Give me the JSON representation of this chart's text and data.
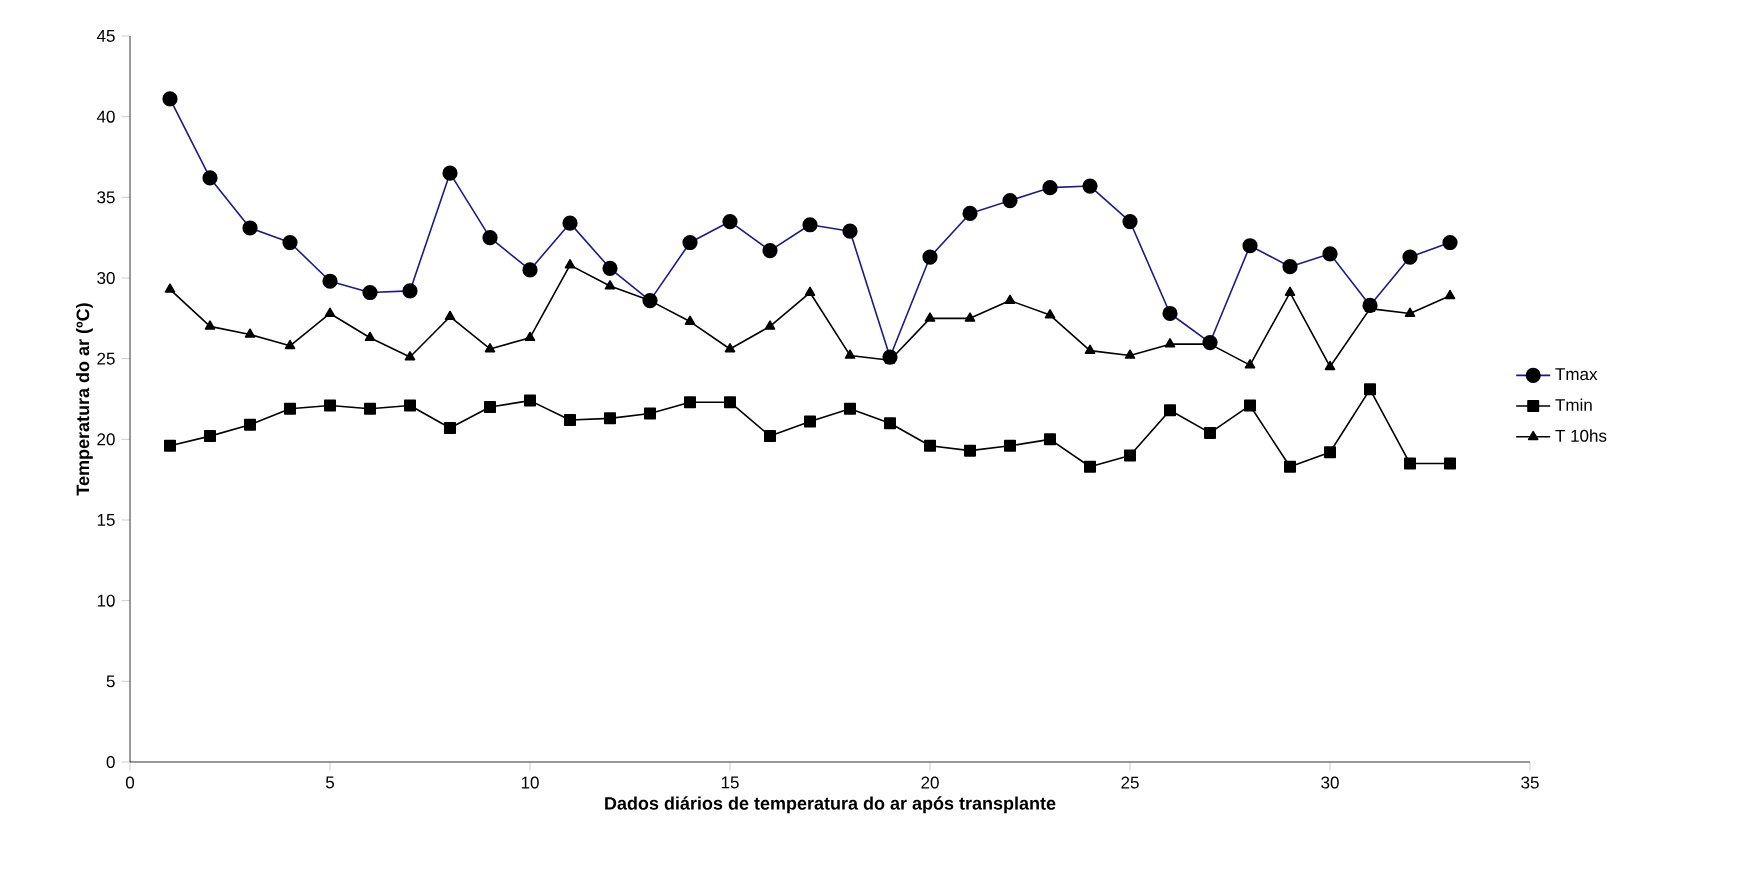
{
  "chart_data": {
    "type": "line",
    "xlabel": "Dados diários de temperatura do ar após transplante",
    "ylabel": "Temperatura do ar (ºC)",
    "x": [
      1,
      2,
      3,
      4,
      5,
      6,
      7,
      8,
      9,
      10,
      11,
      12,
      13,
      14,
      15,
      16,
      17,
      18,
      19,
      20,
      21,
      22,
      23,
      24,
      25,
      26,
      27,
      28,
      29,
      30,
      31,
      32,
      33
    ],
    "series": [
      {
        "name": "Tmax",
        "color": "#1a1a8c",
        "marker": "circle",
        "values": [
          41.1,
          36.2,
          33.1,
          32.2,
          29.8,
          29.1,
          29.2,
          36.5,
          32.5,
          30.5,
          33.4,
          30.6,
          28.6,
          32.2,
          33.5,
          31.7,
          33.3,
          32.9,
          25.1,
          31.3,
          34.0,
          34.8,
          35.6,
          35.7,
          33.5,
          27.8,
          26.0,
          32.0,
          30.7,
          31.5,
          28.3,
          31.3,
          32.2
        ]
      },
      {
        "name": "Tmin",
        "color": "#000000",
        "marker": "square",
        "values": [
          19.6,
          20.2,
          20.9,
          21.9,
          22.1,
          21.9,
          22.1,
          20.7,
          22.0,
          22.4,
          21.2,
          21.3,
          21.6,
          22.3,
          22.3,
          20.2,
          21.1,
          21.9,
          21.0,
          19.6,
          19.3,
          19.6,
          20.0,
          18.3,
          19.0,
          21.8,
          20.4,
          22.1,
          18.3,
          19.2,
          23.1,
          18.5,
          18.5
        ]
      },
      {
        "name": "T 10hs",
        "color": "#000000",
        "marker": "triangle",
        "values": [
          29.3,
          27.0,
          26.5,
          25.8,
          27.8,
          26.3,
          25.1,
          27.6,
          25.6,
          26.3,
          30.8,
          29.5,
          28.6,
          27.3,
          25.6,
          27.0,
          29.1,
          25.2,
          24.9,
          27.5,
          27.5,
          28.6,
          27.7,
          25.5,
          25.2,
          25.9,
          25.9,
          24.6,
          29.1,
          24.5,
          28.1,
          27.8,
          28.9
        ]
      }
    ],
    "xlim": [
      0,
      35
    ],
    "xticks": [
      0,
      5,
      10,
      15,
      20,
      25,
      30,
      35
    ],
    "ylim": [
      0,
      45
    ],
    "yticks": [
      0,
      5,
      10,
      15,
      20,
      25,
      30,
      35,
      40,
      45
    ],
    "grid": false,
    "legend": "right",
    "line_style": "solid"
  }
}
